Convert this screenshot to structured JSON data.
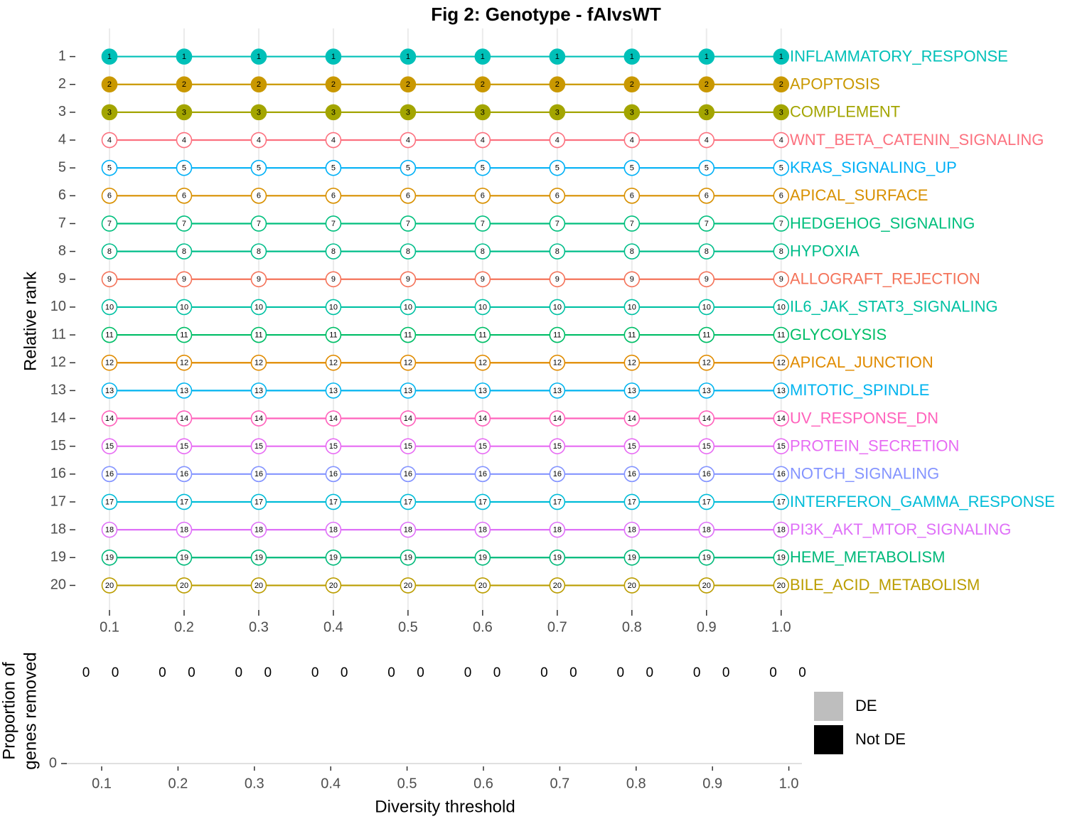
{
  "chart_data": [
    {
      "type": "bump",
      "title": "Fig 2: Genotype - fAIvsWT",
      "ylabel": "Relative rank",
      "x": [
        0.1,
        0.2,
        0.3,
        0.4,
        0.5,
        0.6,
        0.7,
        0.8,
        0.9,
        1
      ],
      "xlim": [
        0.055,
        1.045
      ],
      "xticks": [
        0.1,
        0.2,
        0.3,
        0.4,
        0.5,
        0.6,
        0.7,
        0.8,
        0.9,
        {
          "value": 1,
          "label": "1.0"
        }
      ],
      "ylim": [
        20.5,
        0.5
      ],
      "yticks": [
        1,
        2,
        3,
        4,
        5,
        6,
        7,
        8,
        9,
        10,
        11,
        12,
        13,
        14,
        15,
        16,
        17,
        18,
        19,
        20
      ],
      "grid": true,
      "series": [
        {
          "name": "INFLAMMATORY_RESPONSE",
          "color": "#00c0b8",
          "filled": true,
          "values": [
            1,
            1,
            1,
            1,
            1,
            1,
            1,
            1,
            1,
            1
          ]
        },
        {
          "name": "APOPTOSIS",
          "color": "#c99800",
          "filled": true,
          "values": [
            2,
            2,
            2,
            2,
            2,
            2,
            2,
            2,
            2,
            2
          ]
        },
        {
          "name": "COMPLEMENT",
          "color": "#a3a500",
          "filled": true,
          "values": [
            3,
            3,
            3,
            3,
            3,
            3,
            3,
            3,
            3,
            3
          ]
        },
        {
          "name": "WNT_BETA_CATENIN_SIGNALING",
          "color": "#fc717f",
          "filled": false,
          "values": [
            4,
            4,
            4,
            4,
            4,
            4,
            4,
            4,
            4,
            4
          ]
        },
        {
          "name": "KRAS_SIGNALING_UP",
          "color": "#00b0f6",
          "filled": false,
          "values": [
            5,
            5,
            5,
            5,
            5,
            5,
            5,
            5,
            5,
            5
          ]
        },
        {
          "name": "APICAL_SURFACE",
          "color": "#d89000",
          "filled": false,
          "values": [
            6,
            6,
            6,
            6,
            6,
            6,
            6,
            6,
            6,
            6
          ]
        },
        {
          "name": "HEDGEHOG_SIGNALING",
          "color": "#00bf7d",
          "filled": false,
          "values": [
            7,
            7,
            7,
            7,
            7,
            7,
            7,
            7,
            7,
            7
          ]
        },
        {
          "name": "HYPOXIA",
          "color": "#00bd8a",
          "filled": false,
          "values": [
            8,
            8,
            8,
            8,
            8,
            8,
            8,
            8,
            8,
            8
          ]
        },
        {
          "name": "ALLOGRAFT_REJECTION",
          "color": "#f4735a",
          "filled": false,
          "values": [
            9,
            9,
            9,
            9,
            9,
            9,
            9,
            9,
            9,
            9
          ]
        },
        {
          "name": "IL6_JAK_STAT3_SIGNALING",
          "color": "#00c1a3",
          "filled": false,
          "values": [
            10,
            10,
            10,
            10,
            10,
            10,
            10,
            10,
            10,
            10
          ]
        },
        {
          "name": "GLYCOLYSIS",
          "color": "#00be67",
          "filled": false,
          "values": [
            11,
            11,
            11,
            11,
            11,
            11,
            11,
            11,
            11,
            11
          ]
        },
        {
          "name": "APICAL_JUNCTION",
          "color": "#e08b00",
          "filled": false,
          "values": [
            12,
            12,
            12,
            12,
            12,
            12,
            12,
            12,
            12,
            12
          ]
        },
        {
          "name": "MITOTIC_SPINDLE",
          "color": "#00b4ef",
          "filled": false,
          "values": [
            13,
            13,
            13,
            13,
            13,
            13,
            13,
            13,
            13,
            13
          ]
        },
        {
          "name": "UV_RESPONSE_DN",
          "color": "#ff62bc",
          "filled": false,
          "values": [
            14,
            14,
            14,
            14,
            14,
            14,
            14,
            14,
            14,
            14
          ]
        },
        {
          "name": "PROTEIN_SECRETION",
          "color": "#e76bf3",
          "filled": false,
          "values": [
            15,
            15,
            15,
            15,
            15,
            15,
            15,
            15,
            15,
            15
          ]
        },
        {
          "name": "NOTCH_SIGNALING",
          "color": "#8494ff",
          "filled": false,
          "values": [
            16,
            16,
            16,
            16,
            16,
            16,
            16,
            16,
            16,
            16
          ]
        },
        {
          "name": "INTERFERON_GAMMA_RESPONSE",
          "color": "#00bcd8",
          "filled": false,
          "values": [
            17,
            17,
            17,
            17,
            17,
            17,
            17,
            17,
            17,
            17
          ]
        },
        {
          "name": "PI3K_AKT_MTOR_SIGNALING",
          "color": "#df70f8",
          "filled": false,
          "values": [
            18,
            18,
            18,
            18,
            18,
            18,
            18,
            18,
            18,
            18
          ]
        },
        {
          "name": "HEME_METABOLISM",
          "color": "#00b97a",
          "filled": false,
          "values": [
            19,
            19,
            19,
            19,
            19,
            19,
            19,
            19,
            19,
            19
          ]
        },
        {
          "name": "BILE_ACID_METABOLISM",
          "color": "#bb9d00",
          "filled": false,
          "values": [
            20,
            20,
            20,
            20,
            20,
            20,
            20,
            20,
            20,
            20
          ]
        }
      ]
    },
    {
      "type": "bar",
      "xlabel": "Diversity threshold",
      "ylabel": [
        "Proportion of",
        "genes removed"
      ],
      "x": [
        0.1,
        0.2,
        0.3,
        0.4,
        0.5,
        0.6,
        0.7,
        0.8,
        0.9,
        1
      ],
      "xlim": [
        0.05,
        1.03
      ],
      "xticks": [
        0.1,
        0.2,
        0.3,
        0.4,
        0.5,
        0.6,
        0.7,
        0.8,
        0.9,
        {
          "value": 1,
          "label": "1.0"
        }
      ],
      "ylim": [
        0,
        1
      ],
      "yticks": [
        0
      ],
      "series": [
        {
          "name": "DE",
          "color": "#bebebe",
          "values": [
            0,
            0,
            0,
            0,
            0,
            0,
            0,
            0,
            0,
            0
          ]
        },
        {
          "name": "Not DE",
          "color": "#000000",
          "values": [
            0,
            0,
            0,
            0,
            0,
            0,
            0,
            0,
            0,
            0
          ]
        }
      ]
    }
  ]
}
